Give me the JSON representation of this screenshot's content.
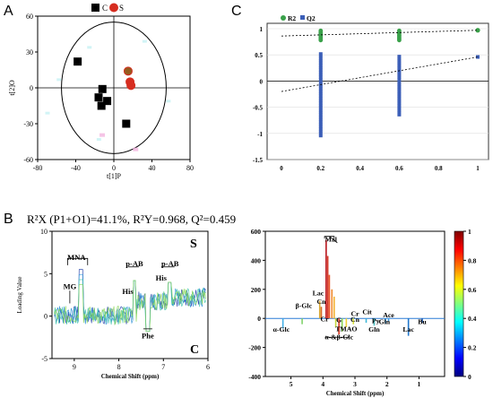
{
  "panels": {
    "a": "A",
    "b": "B",
    "c": "C"
  },
  "caption": "R²X (P1+O1)=41.1%, R²Y=0.968, Q²=0.459",
  "chart_data": [
    {
      "id": "score-plot",
      "type": "scatter",
      "xlabel": "t[1]P",
      "ylabel": "t[2]O",
      "xlim": [
        -80,
        80
      ],
      "ylim": [
        -60,
        60
      ],
      "xticks": [
        -80,
        -40,
        0,
        40,
        80
      ],
      "yticks": [
        -60,
        -30,
        0,
        30,
        60
      ],
      "legend": {
        "position": "top-center",
        "labels": [
          "C",
          "S"
        ]
      },
      "series": [
        {
          "name": "C",
          "color": "#000000",
          "marker": "square",
          "points": [
            [
              -38,
              22
            ],
            [
              -12,
              -1
            ],
            [
              -16,
              -8
            ],
            [
              -13,
              -15
            ],
            [
              -7,
              -11
            ],
            [
              13,
              -30
            ]
          ]
        },
        {
          "name": "S",
          "color": "#d62d20",
          "marker": "circle",
          "points": [
            [
              15,
              14
            ],
            [
              17,
              5
            ],
            [
              18,
              2
            ]
          ]
        }
      ]
    },
    {
      "id": "permutation-plot",
      "type": "scatter",
      "xlim": [
        0,
        1
      ],
      "ylim": [
        -1.5,
        1
      ],
      "xticks": [
        "0",
        "0.2",
        "0.4",
        "0.6",
        "0.8",
        "1"
      ],
      "yticks": [
        "-1.5",
        "-1",
        "-0.5",
        "0",
        "0.5",
        "1"
      ],
      "legend": {
        "position": "top-left",
        "labels": [
          "R2",
          "Q2"
        ]
      },
      "colors": {
        "R2": "#3aa14a",
        "Q2": "#3c5fb8"
      },
      "R2": {
        "x_groups": [
          0.2,
          0.6
        ],
        "min": 0.78,
        "max": 0.99,
        "final": [
          1,
          0.97
        ],
        "line": [
          [
            0,
            0.86
          ],
          [
            1,
            0.97
          ]
        ]
      },
      "Q2": {
        "x_groups": [
          0.2,
          0.6
        ],
        "min_a": -1.05,
        "max_a": 0.55,
        "min_b": -0.65,
        "max_b": 0.5,
        "final": [
          1,
          0.46
        ],
        "line": [
          [
            0,
            -0.2
          ],
          [
            1,
            0.46
          ]
        ]
      }
    },
    {
      "id": "loading-spectrum-s",
      "type": "line",
      "xlabel": "Chemical Shift (ppm)",
      "ylabel": "Loading Value",
      "xlim": [
        9.5,
        6
      ],
      "ylim": [
        -5,
        10
      ],
      "xticks": [
        "9",
        "8",
        "7",
        "6"
      ],
      "yticks": [
        "-5",
        "0",
        "5",
        "10"
      ],
      "corner_top": "S",
      "corner_bottom": "C",
      "annotations": [
        {
          "text": "MNA",
          "x": 8.95,
          "y": 6.6
        },
        {
          "text": "MG",
          "x": 9.1,
          "y": 3.2
        },
        {
          "text": "His",
          "x": 7.8,
          "y": 2.6
        },
        {
          "text": "p-AB",
          "x": 7.65,
          "y": 5.9
        },
        {
          "text": "His",
          "x": 7.05,
          "y": 4.2
        },
        {
          "text": "p-AB",
          "x": 6.85,
          "y": 5.9
        },
        {
          "text": "Phe",
          "x": 7.35,
          "y": -2.6
        }
      ]
    },
    {
      "id": "loading-spectrum-correlation",
      "type": "line",
      "xlabel": "Chemical Shift (ppm)",
      "xlim": [
        5.8,
        0.2
      ],
      "ylim": [
        -400,
        600
      ],
      "xticks": [
        "5",
        "4",
        "3",
        "2",
        "1"
      ],
      "yticks": [
        "-400",
        "-200",
        "0",
        "200",
        "400",
        "600"
      ],
      "colorbar": {
        "min": 0,
        "max": 1,
        "ticks": [
          "0",
          "0.2",
          "0.4",
          "0.6",
          "0.8",
          "1"
        ]
      },
      "annotations": [
        {
          "text": "Mal",
          "x": 3.75,
          "y": 530
        },
        {
          "text": "Lac",
          "x": 4.15,
          "y": 160
        },
        {
          "text": "Cn",
          "x": 4.05,
          "y": 100
        },
        {
          "text": "β-Glc",
          "x": 4.6,
          "y": 72
        },
        {
          "text": "Cr",
          "x": 3.95,
          "y": -20
        },
        {
          "text": "G",
          "x": 3.5,
          "y": -25
        },
        {
          "text": "TMAO",
          "x": 3.27,
          "y": -88
        },
        {
          "text": "Cr",
          "x": 3.0,
          "y": 18
        },
        {
          "text": "Cn",
          "x": 3.0,
          "y": -22
        },
        {
          "text": "Cit",
          "x": 2.62,
          "y": 30
        },
        {
          "text": "Py",
          "x": 2.35,
          "y": -32
        },
        {
          "text": "Gln",
          "x": 2.4,
          "y": -90
        },
        {
          "text": "Ace",
          "x": 1.95,
          "y": 8
        },
        {
          "text": "Gln",
          "x": 2.08,
          "y": -40
        },
        {
          "text": "Lac",
          "x": 1.33,
          "y": -90
        },
        {
          "text": "Bu",
          "x": 0.9,
          "y": -40
        },
        {
          "text": "α-Glc",
          "x": 5.3,
          "y": -90
        },
        {
          "text": "α-&β-Glc",
          "x": 3.5,
          "y": -145
        }
      ]
    }
  ]
}
